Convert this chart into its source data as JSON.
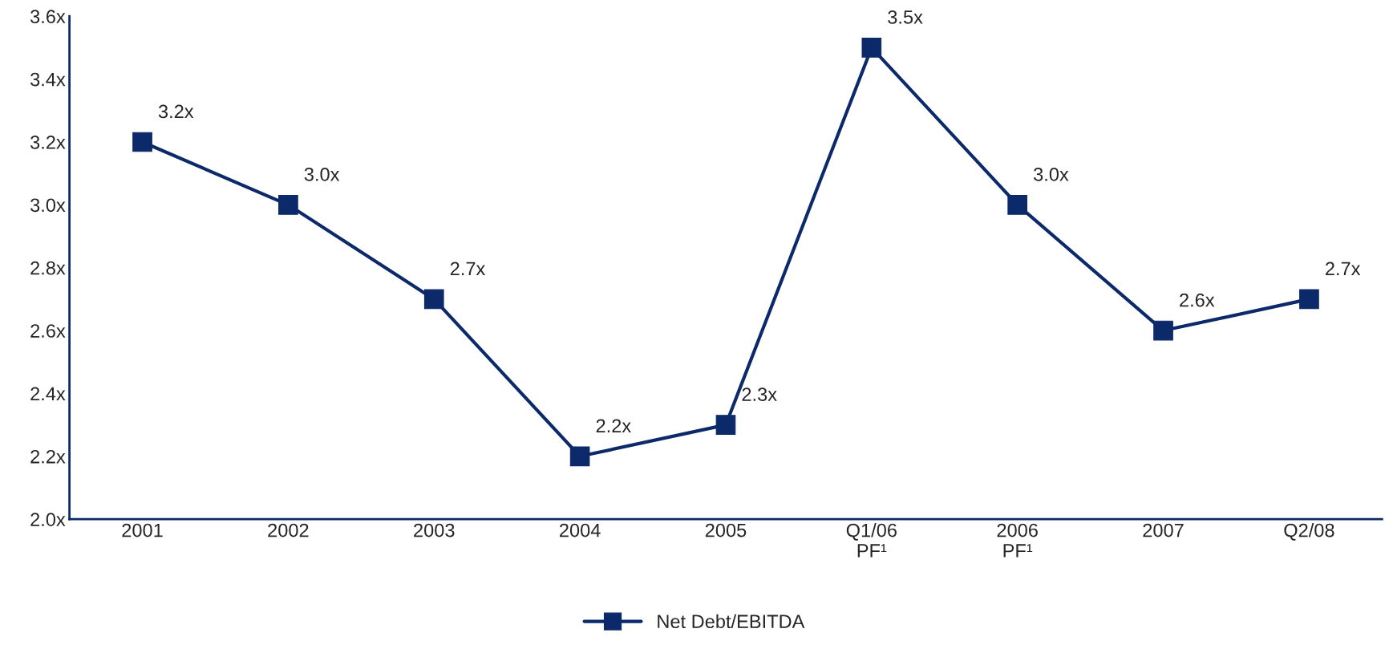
{
  "chart_data": {
    "type": "line",
    "categories": [
      "2001",
      "2002",
      "2003",
      "2004",
      "2005",
      "Q1/06\nPF¹",
      "2006\nPF¹",
      "2007",
      "Q2/08"
    ],
    "series": [
      {
        "name": "Net Debt/EBITDA",
        "color": "#0c2a6a",
        "values": [
          3.2,
          3.0,
          2.7,
          2.2,
          2.3,
          3.5,
          3.0,
          2.6,
          2.7
        ],
        "value_labels": [
          "3.2x",
          "3.0x",
          "2.7x",
          "2.2x",
          "2.3x",
          "3.5x",
          "3.0x",
          "2.6x",
          "2.7x"
        ]
      }
    ],
    "ylim": [
      2.0,
      3.6
    ],
    "yticks": [
      {
        "value": 2.0,
        "label": "2.0x"
      },
      {
        "value": 2.2,
        "label": "2.2x"
      },
      {
        "value": 2.4,
        "label": "2.4x"
      },
      {
        "value": 2.6,
        "label": "2.6x"
      },
      {
        "value": 2.8,
        "label": "2.8x"
      },
      {
        "value": 3.0,
        "label": "3.0x"
      },
      {
        "value": 3.2,
        "label": "3.2x"
      },
      {
        "value": 3.4,
        "label": "3.4x"
      },
      {
        "value": 3.6,
        "label": "3.6x"
      }
    ],
    "marker": "square",
    "line_style": "solid",
    "grid": false,
    "legend": "bottom"
  }
}
